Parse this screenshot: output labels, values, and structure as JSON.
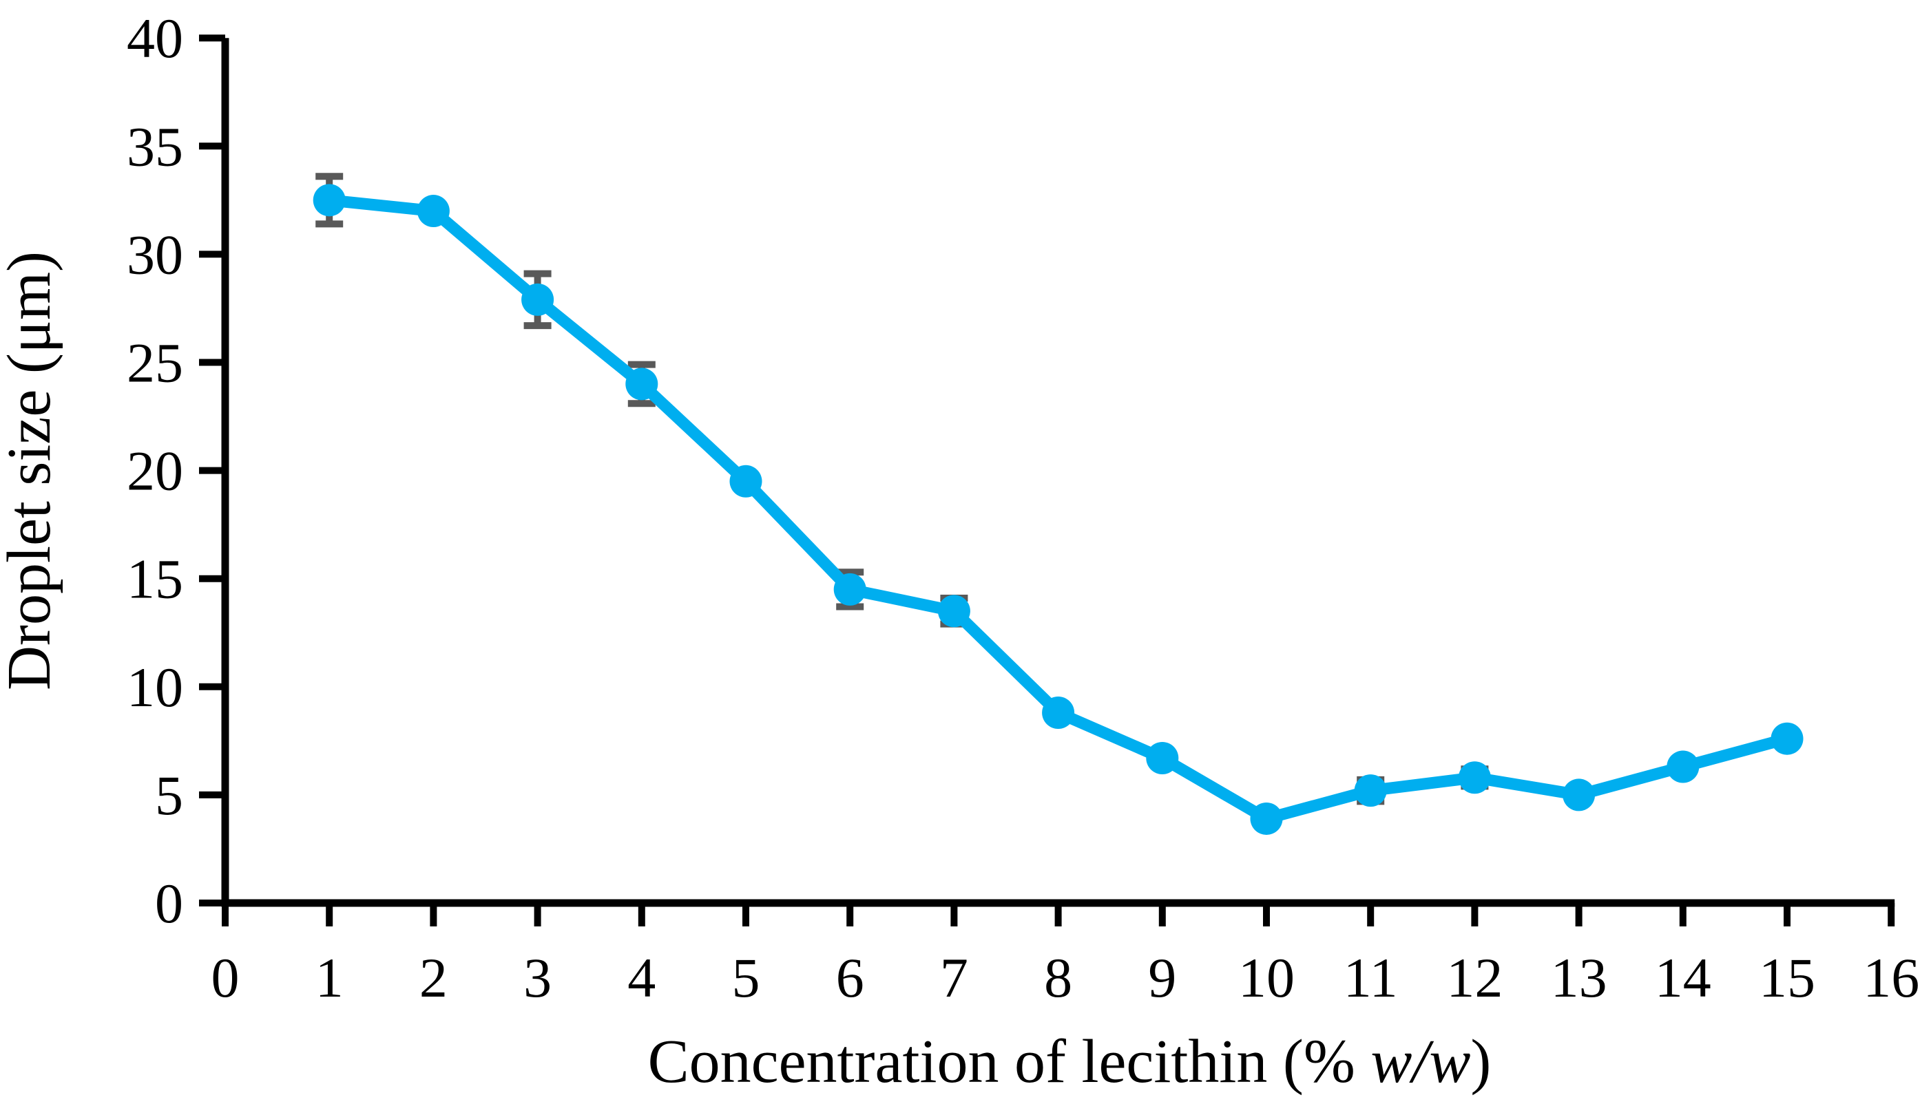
{
  "page": {
    "background": "#ffffff"
  },
  "chart_data": {
    "type": "line",
    "title": "",
    "xlabel": "Concentration of lecithin (% w/w)",
    "xlabel_parts": {
      "prefix": "Concentration of lecithin (% ",
      "italic": "w/w",
      "suffix": ")"
    },
    "ylabel": "Droplet size (μm)",
    "series_name": "Droplet size",
    "x": [
      1,
      2,
      3,
      4,
      5,
      6,
      7,
      8,
      9,
      10,
      11,
      12,
      13,
      14,
      15
    ],
    "y": [
      32.5,
      32,
      27.9,
      24,
      19.5,
      14.5,
      13.5,
      8.8,
      6.7,
      3.9,
      5.2,
      5.8,
      5,
      6.3,
      7.6
    ],
    "yerr": [
      1.1,
      0,
      1.2,
      0.9,
      0,
      0.8,
      0.6,
      0,
      0,
      0,
      0.5,
      0.4,
      0,
      0,
      0
    ],
    "xlim": [
      0,
      16
    ],
    "ylim": [
      0,
      40
    ],
    "xticks": [
      0,
      1,
      2,
      3,
      4,
      5,
      6,
      7,
      8,
      9,
      10,
      11,
      12,
      13,
      14,
      15,
      16
    ],
    "yticks": [
      0,
      5,
      10,
      15,
      20,
      25,
      30,
      35,
      40
    ],
    "grid": false,
    "legend": null,
    "line_color": "#00AEEF",
    "marker_color": "#00AEEF",
    "error_bar_color": "#595959",
    "axis_color": "#000000"
  }
}
